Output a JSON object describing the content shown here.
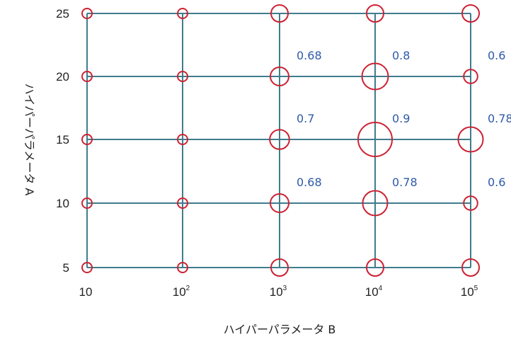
{
  "chart_data": {
    "type": "scatter",
    "xlabel": "ハイパーパラメータ B",
    "ylabel": "ハイパーパラメータ A",
    "x_ticks": [
      {
        "base": "10",
        "exp": ""
      },
      {
        "base": "10",
        "exp": "2"
      },
      {
        "base": "10",
        "exp": "3"
      },
      {
        "base": "10",
        "exp": "4"
      },
      {
        "base": "10",
        "exp": "5"
      }
    ],
    "y_ticks": [
      "25",
      "20",
      "15",
      "10",
      "5"
    ],
    "x": [
      10,
      100,
      1000,
      10000,
      100000
    ],
    "y": [
      25,
      20,
      15,
      10,
      5
    ],
    "scores": [
      {
        "x": 1000,
        "y": 20,
        "value": 0.68,
        "label": "0.68"
      },
      {
        "x": 10000,
        "y": 20,
        "value": 0.8,
        "label": "0.8"
      },
      {
        "x": 100000,
        "y": 20,
        "value": 0.6,
        "label": "0.6"
      },
      {
        "x": 1000,
        "y": 15,
        "value": 0.7,
        "label": "0.7"
      },
      {
        "x": 10000,
        "y": 15,
        "value": 0.9,
        "label": "0.9"
      },
      {
        "x": 100000,
        "y": 15,
        "value": 0.78,
        "label": "0.78"
      },
      {
        "x": 1000,
        "y": 10,
        "value": 0.68,
        "label": "0.68"
      },
      {
        "x": 10000,
        "y": 10,
        "value": 0.78,
        "label": "0.78"
      },
      {
        "x": 100000,
        "y": 10,
        "value": 0.6,
        "label": "0.6"
      }
    ],
    "grid": true,
    "colors": {
      "grid": "#3f7c8c",
      "marker": "#cc2233",
      "score_text": "#2e5aa8"
    }
  }
}
